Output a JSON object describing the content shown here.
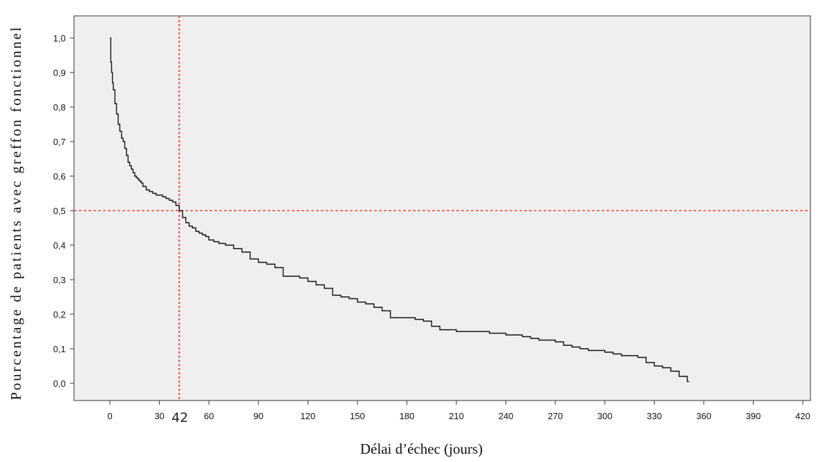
{
  "chart_data": {
    "type": "line",
    "title": "",
    "xlabel": "Délai d’échec (jours)",
    "ylabel": "Pourcentage de patients avec greffon fonctionnel",
    "xlim": [
      -15,
      420
    ],
    "ylim": [
      -0.05,
      1.06
    ],
    "x_ticks": [
      0,
      30,
      60,
      90,
      120,
      150,
      180,
      210,
      240,
      270,
      300,
      330,
      360,
      390,
      420
    ],
    "x_tick_labels": [
      "0",
      "30",
      "60",
      "90",
      "120",
      "150",
      "180",
      "210",
      "240",
      "270",
      "300",
      "330",
      "360",
      "390",
      "420"
    ],
    "y_ticks": [
      0.0,
      0.1,
      0.2,
      0.3,
      0.4,
      0.5,
      0.6,
      0.7,
      0.8,
      0.9,
      1.0
    ],
    "y_tick_labels": [
      "0,0",
      "0,1",
      "0,2",
      "0,3",
      "0,4",
      "0,5",
      "0,6",
      "0,7",
      "0,8",
      "0,9",
      "1,0"
    ],
    "grid": false,
    "plot_background": "#efefef",
    "curve_color": "#111111",
    "reference_color": "#e8473d",
    "reference_lines": {
      "horizontal_y": 0.5,
      "vertical_x": 42,
      "vertical_label": "42"
    },
    "series": [
      {
        "step": true,
        "x": [
          0,
          0.5,
          1,
          1.5,
          2,
          3,
          4,
          5,
          6,
          7,
          8,
          9,
          10,
          11,
          12,
          13,
          14,
          15,
          16,
          17,
          18,
          19,
          20,
          22,
          24,
          26,
          28,
          30,
          32,
          34,
          36,
          38,
          40,
          42,
          44,
          46,
          48,
          50,
          52,
          54,
          56,
          58,
          60,
          63,
          66,
          70,
          75,
          80,
          85,
          90,
          95,
          100,
          105,
          110,
          115,
          120,
          125,
          130,
          135,
          140,
          145,
          150,
          155,
          160,
          165,
          170,
          180,
          185,
          190,
          195,
          200,
          210,
          220,
          230,
          240,
          250,
          255,
          260,
          270,
          275,
          280,
          285,
          290,
          300,
          305,
          310,
          320,
          325,
          330,
          335,
          340,
          345,
          350
        ],
        "y": [
          1.0,
          0.93,
          0.9,
          0.87,
          0.85,
          0.81,
          0.78,
          0.75,
          0.73,
          0.71,
          0.7,
          0.68,
          0.66,
          0.64,
          0.63,
          0.62,
          0.61,
          0.6,
          0.595,
          0.59,
          0.585,
          0.58,
          0.57,
          0.56,
          0.555,
          0.55,
          0.545,
          0.545,
          0.54,
          0.535,
          0.53,
          0.525,
          0.515,
          0.5,
          0.48,
          0.465,
          0.455,
          0.45,
          0.44,
          0.435,
          0.43,
          0.425,
          0.415,
          0.41,
          0.405,
          0.4,
          0.39,
          0.38,
          0.36,
          0.35,
          0.345,
          0.335,
          0.31,
          0.31,
          0.305,
          0.295,
          0.285,
          0.275,
          0.255,
          0.25,
          0.245,
          0.235,
          0.23,
          0.22,
          0.21,
          0.19,
          0.19,
          0.185,
          0.18,
          0.165,
          0.155,
          0.15,
          0.15,
          0.145,
          0.14,
          0.135,
          0.13,
          0.125,
          0.12,
          0.11,
          0.105,
          0.1,
          0.095,
          0.09,
          0.085,
          0.08,
          0.075,
          0.06,
          0.05,
          0.045,
          0.035,
          0.02,
          0.005
        ]
      }
    ]
  }
}
